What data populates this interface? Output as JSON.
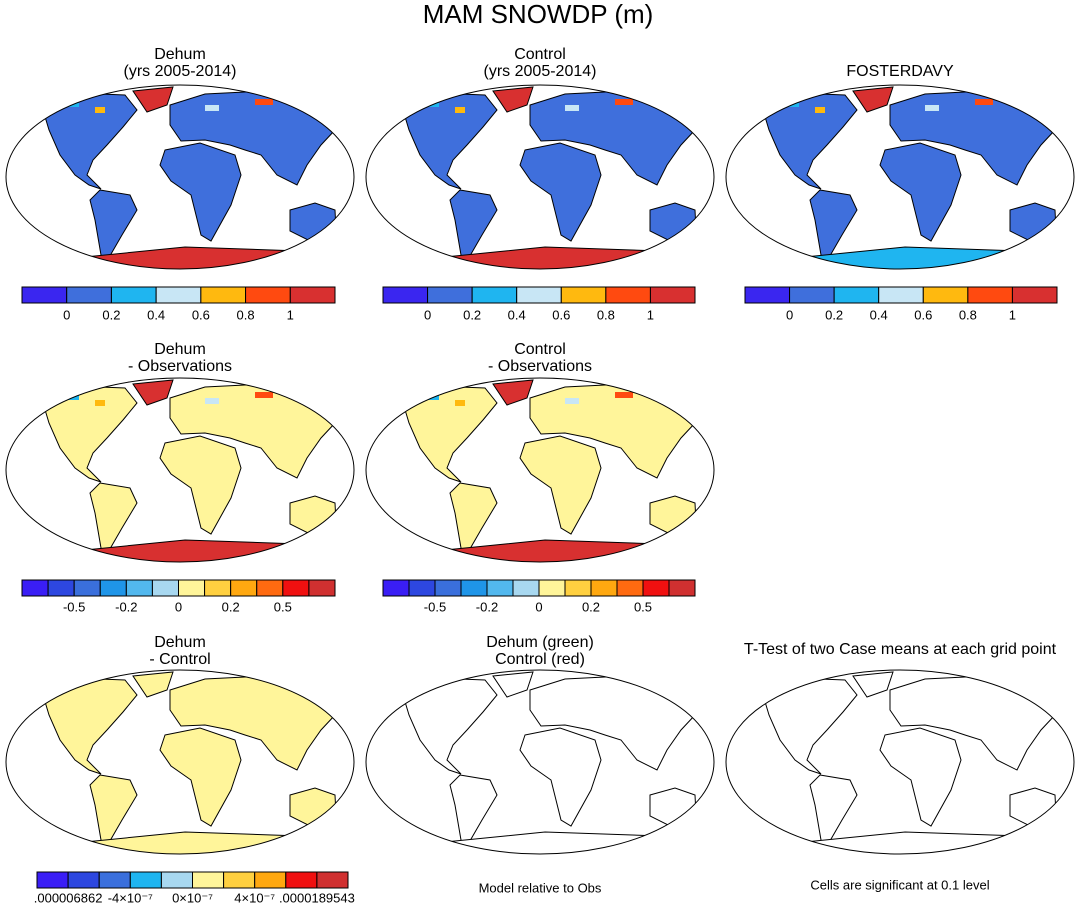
{
  "title": "MAM SNOWDP (m)",
  "panels": [
    {
      "title": [
        "Dehum",
        "(yrs 2005-2014)"
      ],
      "colorbar": {
        "colors": [
          "#3a26f0",
          "#3f6fdc",
          "#1fb5f0",
          "#c8e6f5",
          "#ffb90f",
          "#ff4a10",
          "#d83030"
        ],
        "labels": [
          null,
          "0",
          "0.2",
          "0.4",
          "0.6",
          "0.8",
          "1",
          null
        ]
      }
    },
    {
      "title": [
        "Control",
        "(yrs 2005-2014)"
      ],
      "colorbar": {
        "colors": [
          "#3a26f0",
          "#3f6fdc",
          "#1fb5f0",
          "#c8e6f5",
          "#ffb90f",
          "#ff4a10",
          "#d83030"
        ],
        "labels": [
          null,
          "0",
          "0.2",
          "0.4",
          "0.6",
          "0.8",
          "1",
          null
        ]
      }
    },
    {
      "title": [
        "FOSTERDAVY"
      ],
      "colorbar": {
        "colors": [
          "#3a26f0",
          "#3f6fdc",
          "#1fb5f0",
          "#c8e6f5",
          "#ffb90f",
          "#ff4a10",
          "#d83030"
        ],
        "labels": [
          null,
          "0",
          "0.2",
          "0.4",
          "0.6",
          "0.8",
          "1",
          null
        ]
      }
    },
    {
      "title": [
        "Dehum",
        "- Observations"
      ],
      "colorbar": {
        "colors": [
          "#3a1ef5",
          "#2d47e0",
          "#3a6fdc",
          "#1f95e8",
          "#52b8ee",
          "#a8d8f0",
          "#fff59a",
          "#ffd040",
          "#ffa810",
          "#ff6a10",
          "#f01010",
          "#d03030"
        ],
        "labels": [
          null,
          null,
          "-0.5",
          null,
          "-0.2",
          null,
          "0",
          null,
          "0.2",
          null,
          "0.5",
          null,
          null
        ]
      }
    },
    {
      "title": [
        "Control",
        "- Observations"
      ],
      "colorbar": {
        "colors": [
          "#3a1ef5",
          "#2d47e0",
          "#3a6fdc",
          "#1f95e8",
          "#52b8ee",
          "#a8d8f0",
          "#fff59a",
          "#ffd040",
          "#ffa810",
          "#ff6a10",
          "#f01010",
          "#d03030"
        ],
        "labels": [
          null,
          null,
          "-0.5",
          null,
          "-0.2",
          null,
          "0",
          null,
          "0.2",
          null,
          "0.5",
          null,
          null
        ]
      }
    },
    {
      "title": [
        "Dehum",
        "- Control"
      ],
      "colorbar": {
        "colors": [
          "#3a1ef5",
          "#2d47e0",
          "#3a6fdc",
          "#1fb5f0",
          "#a8d8f0",
          "#fff59a",
          "#ffd040",
          "#ffa810",
          "#f01010",
          "#d03030"
        ],
        "labels": [
          null,
          ".000006862",
          null,
          "-4×10⁻⁷",
          null,
          "0×10⁻⁷",
          null,
          "4×10⁻⁷",
          null,
          ".0000189543",
          null
        ]
      }
    },
    {
      "title": [
        "Dehum (green)",
        "Control (red)"
      ],
      "note": "Model relative to Obs"
    },
    {
      "title": [
        "T-Test of two Case means at each grid point"
      ],
      "note": "Cells are significant at 0.1 level"
    }
  ]
}
